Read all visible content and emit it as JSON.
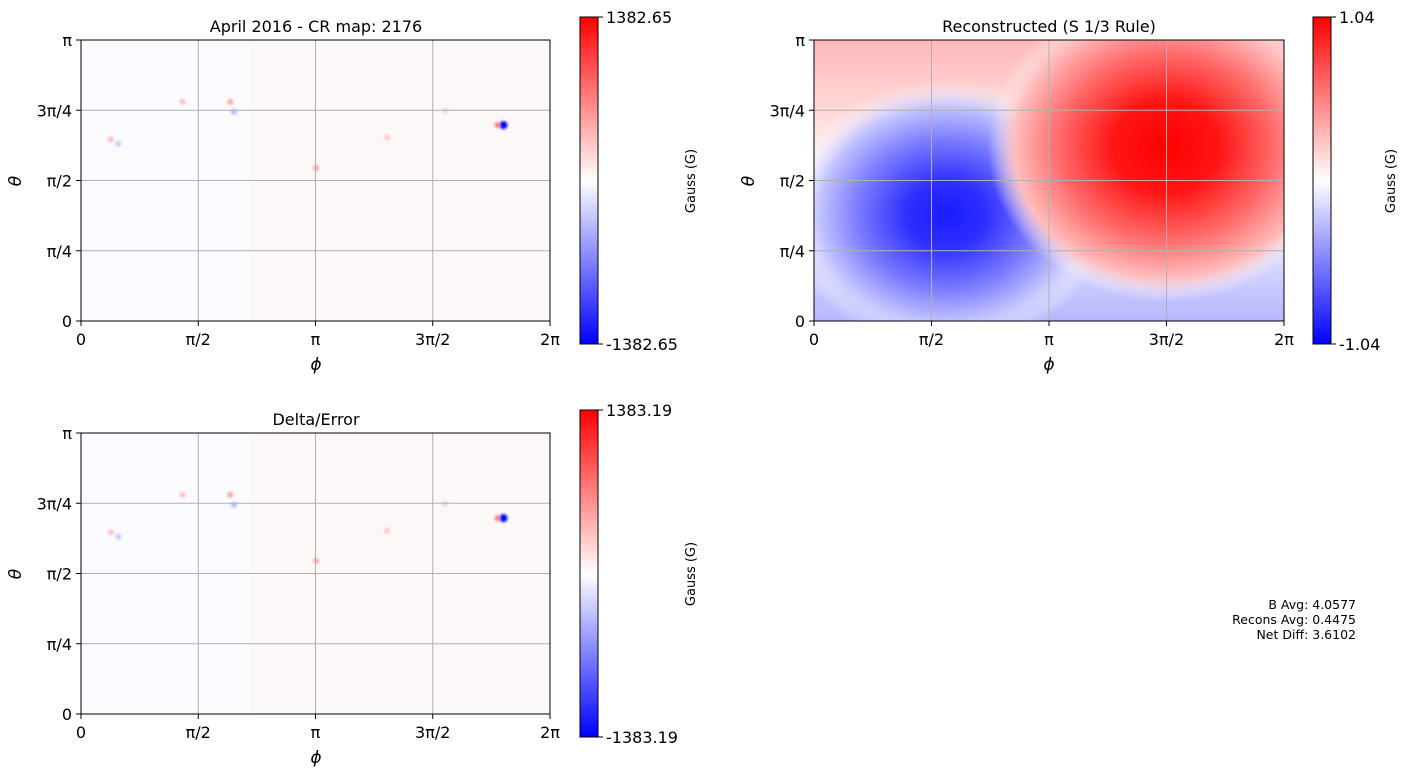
{
  "chart_data": [
    {
      "type": "heatmap",
      "title": "April 2016 - CR map: 2176",
      "xlabel": "ϕ",
      "ylabel": "θ",
      "xticks": [
        "0",
        "π/2",
        "π",
        "3π/2",
        "2π"
      ],
      "yticks": [
        "0",
        "π/4",
        "π/2",
        "3π/4",
        "π"
      ],
      "xlim": [
        0,
        6.2832
      ],
      "ylim": [
        0,
        3.1416
      ],
      "grid": true,
      "colormap": "bwr",
      "colorbar": {
        "label": "Gauss (G)",
        "max_label": "1382.65",
        "min_label": "-1382.65",
        "vmin": -1382.65,
        "vmax": 1382.65
      },
      "features": [
        {
          "phi": 5.66,
          "theta": 2.19,
          "value": -1382.65
        },
        {
          "phi": 5.58,
          "theta": 2.19,
          "value": 700
        },
        {
          "phi": 2.0,
          "theta": 2.45,
          "value": 500
        },
        {
          "phi": 1.36,
          "theta": 2.45,
          "value": 350
        },
        {
          "phi": 0.4,
          "theta": 2.03,
          "value": 350
        },
        {
          "phi": 0.5,
          "theta": 1.98,
          "value": -300
        },
        {
          "phi": 2.05,
          "theta": 2.34,
          "value": -400
        },
        {
          "phi": 3.15,
          "theta": 1.71,
          "value": 500
        },
        {
          "phi": 4.1,
          "theta": 2.05,
          "value": 300
        },
        {
          "phi": 4.88,
          "theta": 2.35,
          "value": -200
        }
      ]
    },
    {
      "type": "heatmap",
      "title": "Reconstructed (S 1/3 Rule)",
      "xlabel": "ϕ",
      "ylabel": "θ",
      "xticks": [
        "0",
        "π/2",
        "π",
        "3π/2",
        "2π"
      ],
      "yticks": [
        "0",
        "π/4",
        "π/2",
        "3π/4",
        "π"
      ],
      "xlim": [
        0,
        6.2832
      ],
      "ylim": [
        0,
        3.1416
      ],
      "grid": true,
      "colormap": "bwr",
      "colorbar": {
        "label": "Gauss (G)",
        "max_label": "1.04",
        "min_label": "-1.04",
        "vmin": -1.04,
        "vmax": 1.04
      },
      "extrema": [
        {
          "phi": 1.77,
          "theta": 1.19,
          "value": -1.04
        },
        {
          "phi": 4.71,
          "theta": 1.95,
          "value": 1.04
        }
      ]
    },
    {
      "type": "heatmap",
      "title": "Delta/Error",
      "xlabel": "ϕ",
      "ylabel": "θ",
      "xticks": [
        "0",
        "π/2",
        "π",
        "3π/2",
        "2π"
      ],
      "yticks": [
        "0",
        "π/4",
        "π/2",
        "3π/4",
        "π"
      ],
      "xlim": [
        0,
        6.2832
      ],
      "ylim": [
        0,
        3.1416
      ],
      "grid": true,
      "colormap": "bwr",
      "colorbar": {
        "label": "Gauss (G)",
        "max_label": "1383.19",
        "min_label": "-1383.19",
        "vmin": -1383.19,
        "vmax": 1383.19
      },
      "features": [
        {
          "phi": 5.66,
          "theta": 2.19,
          "value": -1383.19
        },
        {
          "phi": 5.58,
          "theta": 2.19,
          "value": 700
        },
        {
          "phi": 2.0,
          "theta": 2.45,
          "value": 500
        },
        {
          "phi": 1.36,
          "theta": 2.45,
          "value": 350
        },
        {
          "phi": 0.4,
          "theta": 2.03,
          "value": 350
        },
        {
          "phi": 0.5,
          "theta": 1.98,
          "value": -300
        },
        {
          "phi": 2.05,
          "theta": 2.34,
          "value": -400
        },
        {
          "phi": 3.15,
          "theta": 1.71,
          "value": 500
        },
        {
          "phi": 4.1,
          "theta": 2.05,
          "value": 300
        },
        {
          "phi": 4.88,
          "theta": 2.35,
          "value": -200
        }
      ]
    }
  ],
  "stats": {
    "b_avg": "B Avg: 4.0577",
    "recons_avg": "Recons Avg: 0.4475",
    "net_diff": "Net Diff: 3.6102"
  }
}
